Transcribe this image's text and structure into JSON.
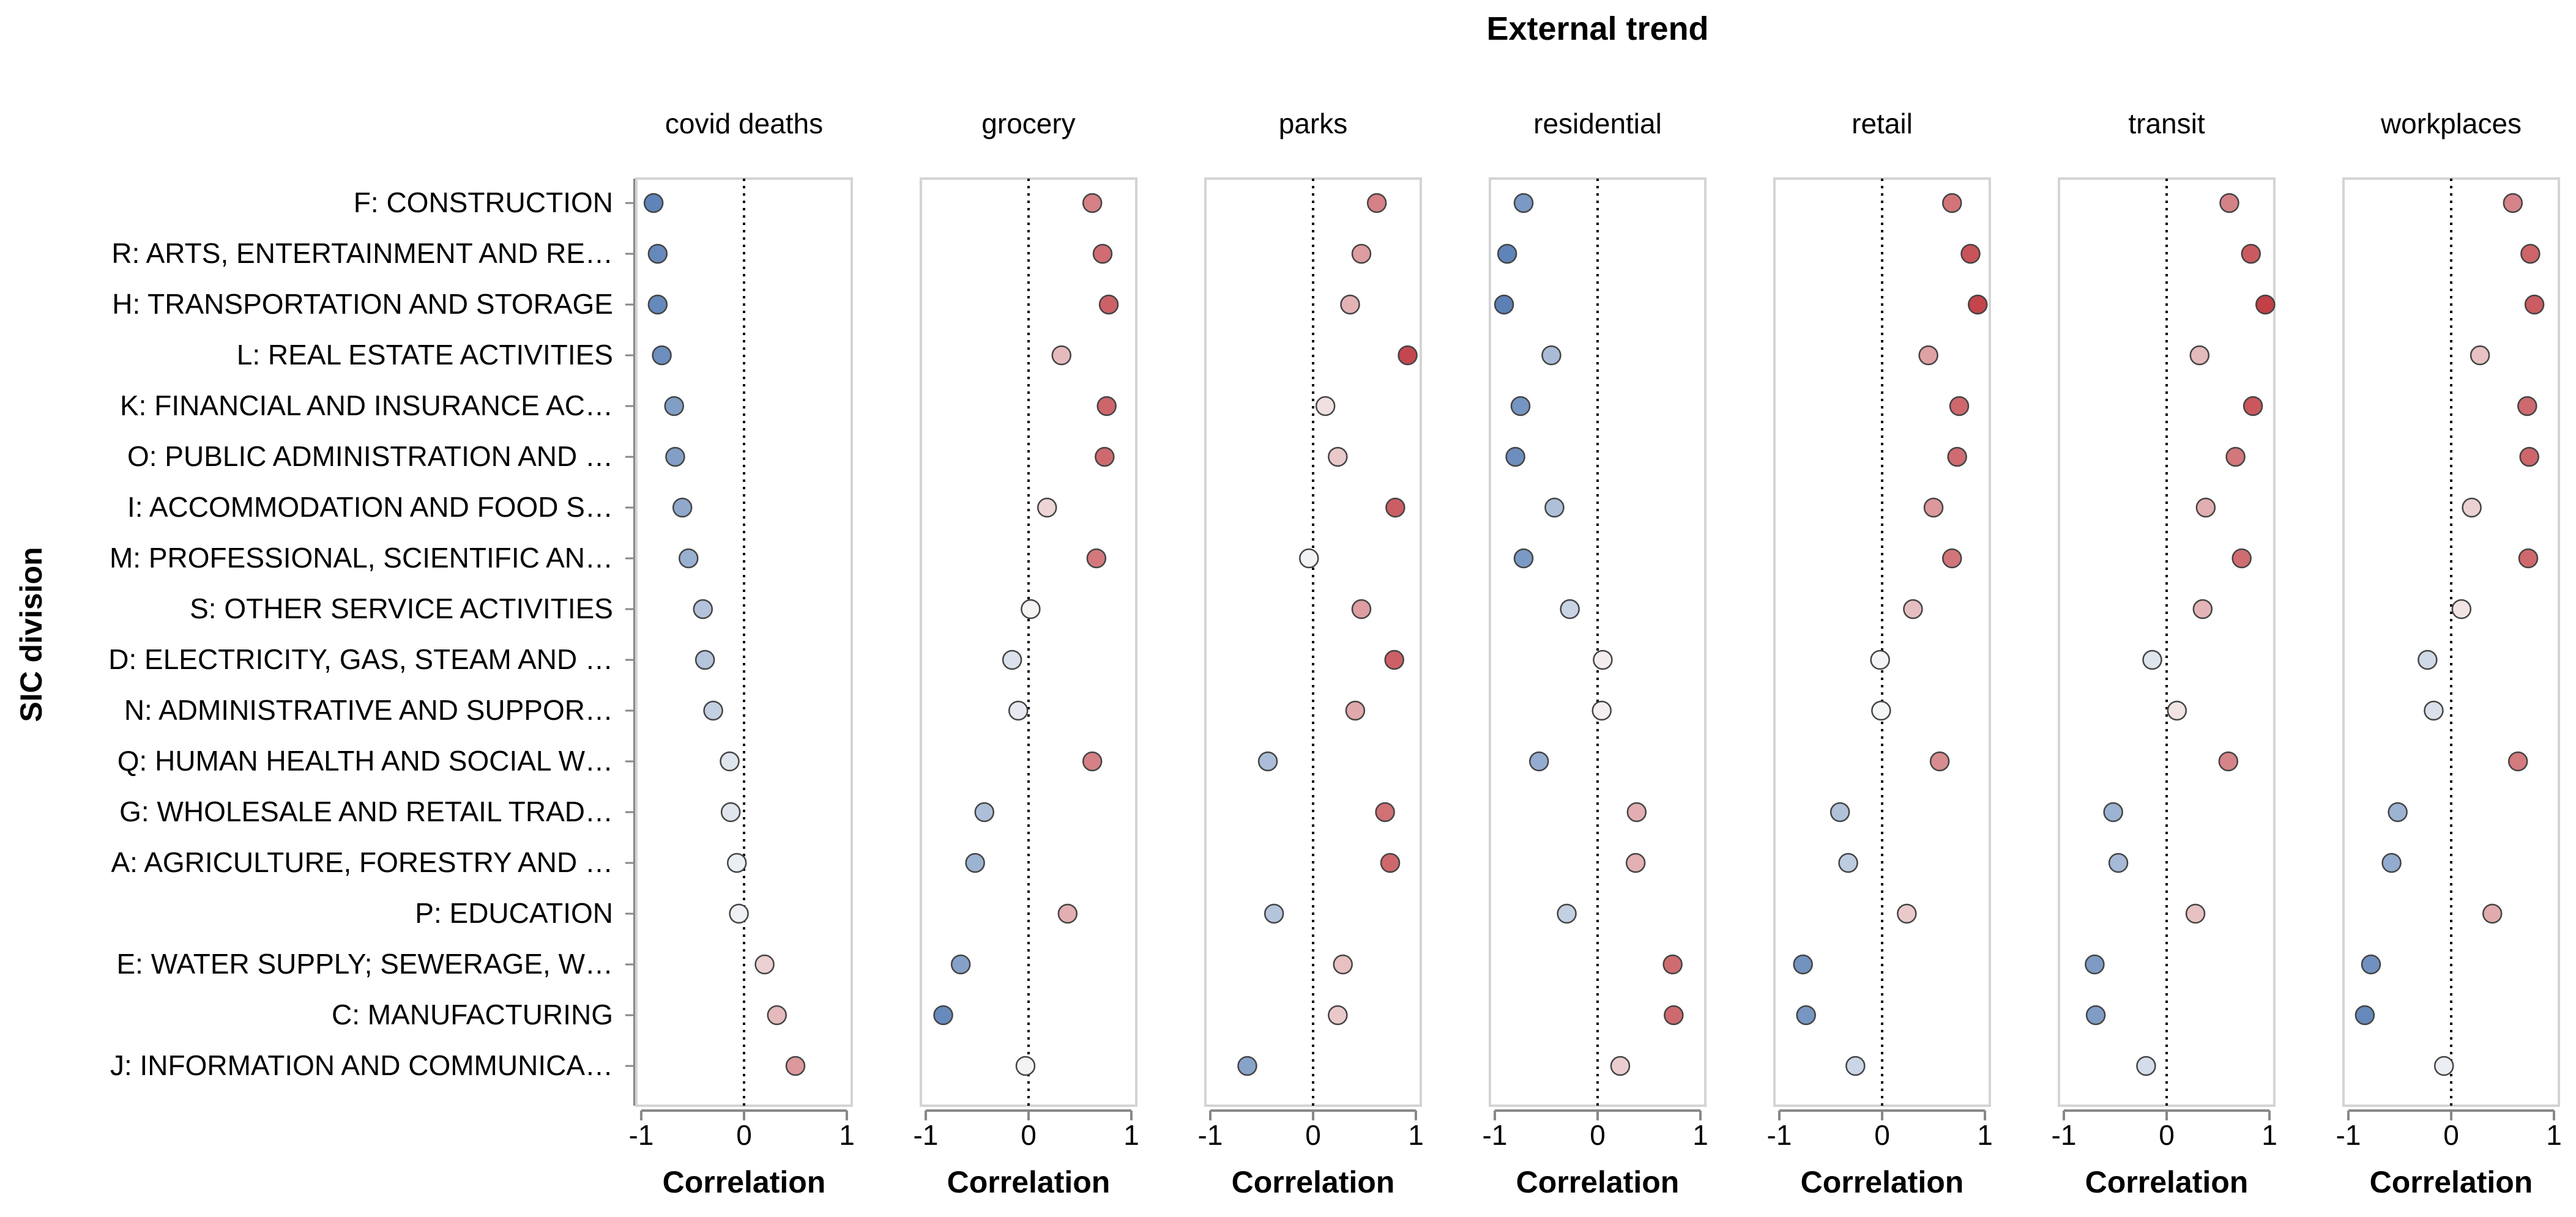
{
  "chart_data": {
    "type": "scatter",
    "title": "External trend",
    "ylabel": "SIC division",
    "xlabel": "Correlation",
    "xlim": [
      -1,
      1
    ],
    "x_ticks": [
      -1,
      0,
      1
    ],
    "x_tick_labels": [
      "-1",
      "0",
      "1"
    ],
    "reference_line": 0,
    "color_scale": {
      "low": "#4a74b0",
      "mid": "#f7f7f7",
      "high": "#c0383f"
    },
    "categories": [
      "F: CONSTRUCTION",
      "R: ARTS, ENTERTAINMENT AND RE…",
      "H: TRANSPORTATION AND STORAGE",
      "L: REAL ESTATE ACTIVITIES",
      "K: FINANCIAL AND INSURANCE AC…",
      "O: PUBLIC ADMINISTRATION AND …",
      "I: ACCOMMODATION AND FOOD S…",
      "M: PROFESSIONAL, SCIENTIFIC AN…",
      "S: OTHER SERVICE ACTIVITIES",
      "D: ELECTRICITY, GAS, STEAM AND …",
      "N: ADMINISTRATIVE AND SUPPOR…",
      "Q: HUMAN HEALTH AND SOCIAL W…",
      "G: WHOLESALE AND RETAIL TRAD…",
      "A: AGRICULTURE, FORESTRY AND …",
      "P: EDUCATION",
      "E: WATER SUPPLY; SEWERAGE, W…",
      "C: MANUFACTURING",
      "J: INFORMATION AND COMMUNICA…"
    ],
    "facets": [
      {
        "name": "covid deaths",
        "values": [
          -0.88,
          -0.84,
          -0.84,
          -0.8,
          -0.68,
          -0.67,
          -0.6,
          -0.54,
          -0.4,
          -0.38,
          -0.3,
          -0.14,
          -0.13,
          -0.07,
          -0.05,
          0.2,
          0.32,
          0.5
        ]
      },
      {
        "name": "grocery",
        "values": [
          0.62,
          0.72,
          0.78,
          0.32,
          0.76,
          0.74,
          0.18,
          0.66,
          0.02,
          -0.16,
          -0.1,
          0.62,
          -0.43,
          -0.52,
          0.38,
          -0.66,
          -0.83,
          -0.03
        ]
      },
      {
        "name": "parks",
        "values": [
          0.62,
          0.47,
          0.36,
          0.92,
          0.12,
          0.24,
          0.8,
          -0.04,
          0.47,
          0.79,
          0.41,
          -0.44,
          0.7,
          0.75,
          -0.38,
          0.29,
          0.24,
          -0.64
        ]
      },
      {
        "name": "residential",
        "values": [
          -0.72,
          -0.88,
          -0.91,
          -0.45,
          -0.75,
          -0.8,
          -0.42,
          -0.72,
          -0.27,
          0.05,
          0.04,
          -0.57,
          0.38,
          0.37,
          -0.3,
          0.73,
          0.74,
          0.22
        ]
      },
      {
        "name": "retail",
        "values": [
          0.68,
          0.86,
          0.93,
          0.45,
          0.75,
          0.73,
          0.5,
          0.68,
          0.3,
          -0.02,
          -0.01,
          0.56,
          -0.41,
          -0.33,
          0.24,
          -0.77,
          -0.74,
          -0.26
        ]
      },
      {
        "name": "transit",
        "values": [
          0.61,
          0.82,
          0.96,
          0.32,
          0.84,
          0.67,
          0.38,
          0.73,
          0.35,
          -0.14,
          0.1,
          0.6,
          -0.52,
          -0.47,
          0.28,
          -0.7,
          -0.69,
          -0.2
        ]
      },
      {
        "name": "workplaces",
        "values": [
          0.6,
          0.77,
          0.81,
          0.28,
          0.74,
          0.76,
          0.2,
          0.75,
          0.1,
          -0.23,
          -0.17,
          0.65,
          -0.52,
          -0.58,
          0.4,
          -0.78,
          -0.84,
          -0.07
        ]
      }
    ]
  }
}
